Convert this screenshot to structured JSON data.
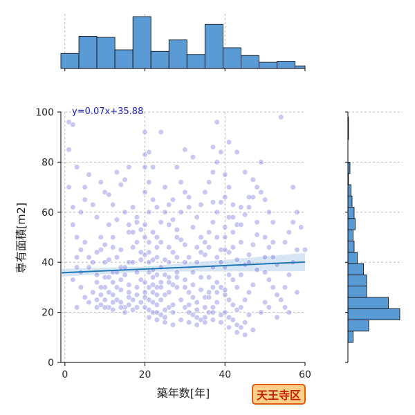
{
  "chart_data": {
    "type": "scatter",
    "xlabel": "築年数[年]",
    "ylabel": "専有面積[m2]",
    "xlim": [
      -1,
      60
    ],
    "ylim": [
      0,
      100
    ],
    "xticks": [
      0,
      20,
      40,
      60
    ],
    "yticks": [
      0,
      20,
      40,
      60,
      80,
      100
    ],
    "grid": true,
    "annotation": "y=0.07x+35.88",
    "badge": "天王寺区",
    "regression": {
      "slope": 0.07,
      "intercept": 35.88,
      "ci": 2.6
    },
    "colors": {
      "points": "#3a3acc",
      "line": "#1f77b4",
      "band": "#c6dbef",
      "bars": "#5b9bd5",
      "eq": "#1f1fb4",
      "badge_fill": "#ffd08a",
      "badge_border": "#e05a10",
      "badge_text": "#c02000"
    },
    "x_hist": {
      "bin_edges": [
        -1,
        3.5,
        8,
        12.5,
        17,
        21.5,
        26,
        30.5,
        35,
        39.5,
        44,
        48.5,
        53,
        57.5,
        60
      ],
      "counts": [
        29,
        62,
        60,
        36,
        100,
        33,
        55,
        27,
        85,
        40,
        25,
        12,
        14,
        5
      ]
    },
    "y_hist": {
      "bin_edges": [
        8,
        12.5,
        17,
        21.5,
        26,
        30.5,
        35,
        39.5,
        44,
        48.5,
        53,
        57.5,
        62,
        66.5,
        71,
        75.5,
        80,
        84.5,
        89,
        93.5,
        98
      ],
      "counts": [
        10,
        40,
        100,
        78,
        36,
        36,
        30,
        18,
        12,
        10,
        14,
        12,
        8,
        6,
        1,
        4,
        0,
        0,
        1,
        1
      ]
    },
    "points": [
      [
        1,
        96
      ],
      [
        1,
        85
      ],
      [
        2,
        95
      ],
      [
        3,
        78
      ],
      [
        1,
        70
      ],
      [
        2,
        62
      ],
      [
        4,
        60
      ],
      [
        2,
        55
      ],
      [
        3,
        50
      ],
      [
        5,
        65
      ],
      [
        4,
        45
      ],
      [
        6,
        42
      ],
      [
        3,
        38
      ],
      [
        2,
        33
      ],
      [
        4,
        30
      ],
      [
        5,
        26
      ],
      [
        3,
        22
      ],
      [
        6,
        24
      ],
      [
        7,
        28
      ],
      [
        8,
        32
      ],
      [
        8,
        22
      ],
      [
        9,
        23
      ],
      [
        10,
        25
      ],
      [
        11,
        22
      ],
      [
        12,
        21
      ],
      [
        9,
        27
      ],
      [
        10,
        30
      ],
      [
        11,
        28
      ],
      [
        13,
        25
      ],
      [
        14,
        24
      ],
      [
        12,
        27
      ],
      [
        15,
        22
      ],
      [
        16,
        26
      ],
      [
        13,
        30
      ],
      [
        14,
        33
      ],
      [
        15,
        35
      ],
      [
        16,
        28
      ],
      [
        17,
        25
      ],
      [
        18,
        30
      ],
      [
        19,
        33
      ],
      [
        12,
        36
      ],
      [
        10,
        40
      ],
      [
        11,
        41
      ],
      [
        13,
        42
      ],
      [
        14,
        38
      ],
      [
        9,
        45
      ],
      [
        10,
        47
      ],
      [
        12,
        50
      ],
      [
        11,
        55
      ],
      [
        13,
        57
      ],
      [
        15,
        60
      ],
      [
        12,
        63
      ],
      [
        10,
        68
      ],
      [
        11,
        67
      ],
      [
        14,
        71
      ],
      [
        13,
        76
      ],
      [
        16,
        78
      ],
      [
        17,
        62
      ],
      [
        18,
        58
      ],
      [
        16,
        52
      ],
      [
        17,
        46
      ],
      [
        19,
        44
      ],
      [
        18,
        48
      ],
      [
        8,
        58
      ],
      [
        7,
        63
      ],
      [
        6,
        75
      ],
      [
        5,
        70
      ],
      [
        9,
        72
      ],
      [
        15,
        73
      ],
      [
        20,
        83
      ],
      [
        21,
        84
      ],
      [
        20,
        78
      ],
      [
        22,
        78
      ],
      [
        21,
        72
      ],
      [
        20,
        68
      ],
      [
        22,
        65
      ],
      [
        23,
        62
      ],
      [
        21,
        60
      ],
      [
        20,
        55
      ],
      [
        22,
        52
      ],
      [
        21,
        48
      ],
      [
        23,
        46
      ],
      [
        20,
        43
      ],
      [
        21,
        40
      ],
      [
        22,
        37
      ],
      [
        23,
        35
      ],
      [
        20,
        32
      ],
      [
        21,
        30
      ],
      [
        22,
        28
      ],
      [
        23,
        27
      ],
      [
        20,
        26
      ],
      [
        21,
        25
      ],
      [
        22,
        24
      ],
      [
        23,
        23
      ],
      [
        20,
        22
      ],
      [
        21,
        21
      ],
      [
        22,
        20
      ],
      [
        23,
        20
      ],
      [
        24,
        19
      ],
      [
        25,
        18
      ],
      [
        26,
        22
      ],
      [
        27,
        23
      ],
      [
        25,
        27
      ],
      [
        24,
        25
      ],
      [
        26,
        28
      ],
      [
        27,
        31
      ],
      [
        25,
        35
      ],
      [
        24,
        38
      ],
      [
        26,
        40
      ],
      [
        28,
        36
      ],
      [
        27,
        44
      ],
      [
        28,
        50
      ],
      [
        26,
        55
      ],
      [
        29,
        60
      ],
      [
        27,
        65
      ],
      [
        25,
        70
      ],
      [
        28,
        78
      ],
      [
        30,
        85
      ],
      [
        32,
        82
      ],
      [
        29,
        72
      ],
      [
        30,
        68
      ],
      [
        31,
        62
      ],
      [
        33,
        58
      ],
      [
        32,
        54
      ],
      [
        34,
        50
      ],
      [
        30,
        47
      ],
      [
        31,
        42
      ],
      [
        33,
        40
      ],
      [
        32,
        36
      ],
      [
        34,
        34
      ],
      [
        30,
        30
      ],
      [
        31,
        28
      ],
      [
        32,
        26
      ],
      [
        33,
        24
      ],
      [
        30,
        22
      ],
      [
        31,
        20
      ],
      [
        32,
        19
      ],
      [
        33,
        18
      ],
      [
        34,
        17
      ],
      [
        35,
        18
      ],
      [
        36,
        20
      ],
      [
        37,
        22
      ],
      [
        38,
        24
      ],
      [
        35,
        26
      ],
      [
        36,
        28
      ],
      [
        37,
        30
      ],
      [
        38,
        32
      ],
      [
        39,
        30
      ],
      [
        36,
        34
      ],
      [
        37,
        38
      ],
      [
        38,
        42
      ],
      [
        39,
        45
      ],
      [
        35,
        48
      ],
      [
        36,
        52
      ],
      [
        37,
        56
      ],
      [
        38,
        60
      ],
      [
        39,
        64
      ],
      [
        35,
        68
      ],
      [
        36,
        72
      ],
      [
        37,
        76
      ],
      [
        38,
        80
      ],
      [
        37,
        86
      ],
      [
        38,
        96
      ],
      [
        39,
        84
      ],
      [
        40,
        75
      ],
      [
        41,
        70
      ],
      [
        40,
        66
      ],
      [
        42,
        63
      ],
      [
        41,
        58
      ],
      [
        43,
        55
      ],
      [
        40,
        50
      ],
      [
        42,
        46
      ],
      [
        41,
        44
      ],
      [
        43,
        41
      ],
      [
        40,
        38
      ],
      [
        41,
        35
      ],
      [
        42,
        33
      ],
      [
        43,
        30
      ],
      [
        40,
        27
      ],
      [
        41,
        25
      ],
      [
        42,
        23
      ],
      [
        43,
        21
      ],
      [
        40,
        20
      ],
      [
        41,
        18
      ],
      [
        42,
        17
      ],
      [
        43,
        15
      ],
      [
        44,
        14
      ],
      [
        45,
        16
      ],
      [
        46,
        19
      ],
      [
        44,
        22
      ],
      [
        45,
        25
      ],
      [
        46,
        28
      ],
      [
        47,
        31
      ],
      [
        44,
        35
      ],
      [
        45,
        39
      ],
      [
        46,
        43
      ],
      [
        47,
        47
      ],
      [
        48,
        51
      ],
      [
        44,
        55
      ],
      [
        45,
        59
      ],
      [
        46,
        62
      ],
      [
        47,
        66
      ],
      [
        48,
        70
      ],
      [
        49,
        68
      ],
      [
        50,
        65
      ],
      [
        51,
        60
      ],
      [
        52,
        56
      ],
      [
        50,
        50
      ],
      [
        51,
        46
      ],
      [
        52,
        42
      ],
      [
        53,
        39
      ],
      [
        50,
        36
      ],
      [
        51,
        33
      ],
      [
        52,
        30
      ],
      [
        53,
        27
      ],
      [
        54,
        25
      ],
      [
        55,
        22
      ],
      [
        50,
        24
      ],
      [
        55,
        30
      ],
      [
        56,
        35
      ],
      [
        57,
        40
      ],
      [
        58,
        45
      ],
      [
        55,
        48
      ],
      [
        56,
        52
      ],
      [
        57,
        56
      ],
      [
        58,
        60
      ],
      [
        54,
        98
      ],
      [
        57,
        70
      ],
      [
        59,
        54
      ],
      [
        60,
        45
      ],
      [
        56,
        20
      ],
      [
        58,
        28
      ],
      [
        30,
        40
      ],
      [
        28,
        42
      ],
      [
        26,
        46
      ],
      [
        24,
        48
      ],
      [
        22,
        34
      ],
      [
        24,
        32
      ],
      [
        26,
        34
      ],
      [
        28,
        30
      ],
      [
        18,
        36
      ],
      [
        16,
        40
      ],
      [
        14,
        45
      ],
      [
        12,
        46
      ],
      [
        34,
        44
      ],
      [
        36,
        46
      ],
      [
        38,
        50
      ],
      [
        40,
        54
      ],
      [
        42,
        58
      ],
      [
        44,
        62
      ],
      [
        46,
        66
      ],
      [
        48,
        56
      ],
      [
        29,
        25
      ],
      [
        31,
        23
      ],
      [
        33,
        21
      ],
      [
        35,
        22
      ],
      [
        37,
        20
      ],
      [
        39,
        19
      ],
      [
        27,
        20
      ],
      [
        25,
        21
      ],
      [
        23,
        30
      ],
      [
        19,
        24
      ],
      [
        17,
        21
      ],
      [
        15,
        20
      ],
      [
        18,
        27
      ],
      [
        16,
        31
      ],
      [
        14,
        29
      ],
      [
        12,
        32
      ],
      [
        10,
        34
      ],
      [
        8,
        35
      ],
      [
        6,
        38
      ],
      [
        5,
        48
      ],
      [
        20,
        92
      ],
      [
        24,
        92
      ],
      [
        31,
        66
      ],
      [
        34,
        63
      ],
      [
        37,
        64
      ],
      [
        41,
        88
      ],
      [
        43,
        84
      ],
      [
        45,
        76
      ],
      [
        47,
        73
      ],
      [
        49,
        80
      ],
      [
        21,
        36
      ],
      [
        22,
        41
      ],
      [
        23,
        50
      ],
      [
        24,
        56
      ],
      [
        25,
        60
      ],
      [
        26,
        63
      ],
      [
        27,
        57
      ],
      [
        28,
        53
      ],
      [
        29,
        49
      ],
      [
        33,
        46
      ],
      [
        35,
        43
      ],
      [
        39,
        40
      ],
      [
        40,
        45
      ],
      [
        42,
        52
      ],
      [
        44,
        48
      ],
      [
        46,
        40
      ],
      [
        48,
        37
      ],
      [
        50,
        42
      ],
      [
        52,
        48
      ],
      [
        20,
        50
      ],
      [
        19,
        53
      ],
      [
        18,
        56
      ],
      [
        17,
        52
      ],
      [
        16,
        55
      ],
      [
        3,
        42
      ],
      [
        4,
        36
      ],
      [
        7,
        40
      ],
      [
        8,
        44
      ],
      [
        9,
        50
      ],
      [
        21,
        18
      ],
      [
        23,
        17
      ],
      [
        25,
        16
      ],
      [
        27,
        15
      ],
      [
        29,
        17
      ],
      [
        31,
        16
      ],
      [
        33,
        15
      ],
      [
        35,
        16
      ],
      [
        37,
        17
      ],
      [
        39,
        16
      ],
      [
        41,
        14
      ],
      [
        43,
        12
      ],
      [
        45,
        11
      ],
      [
        47,
        13
      ],
      [
        49,
        20
      ],
      [
        51,
        22
      ],
      [
        53,
        18
      ],
      [
        38,
        28
      ],
      [
        40,
        29
      ],
      [
        36,
        26
      ],
      [
        34,
        29
      ],
      [
        32,
        31
      ],
      [
        30,
        33
      ],
      [
        28,
        34
      ],
      [
        26,
        32
      ],
      [
        24,
        30
      ],
      [
        22,
        31
      ],
      [
        20,
        28
      ],
      [
        18,
        22
      ],
      [
        16,
        23
      ],
      [
        14,
        22
      ],
      [
        12,
        24
      ],
      [
        10,
        22
      ],
      [
        8,
        25
      ],
      [
        9,
        30
      ],
      [
        11,
        34
      ],
      [
        13,
        36
      ],
      [
        15,
        38
      ],
      [
        17,
        40
      ],
      [
        19,
        41
      ],
      [
        21,
        44
      ],
      [
        23,
        42
      ],
      [
        25,
        41
      ]
    ]
  }
}
